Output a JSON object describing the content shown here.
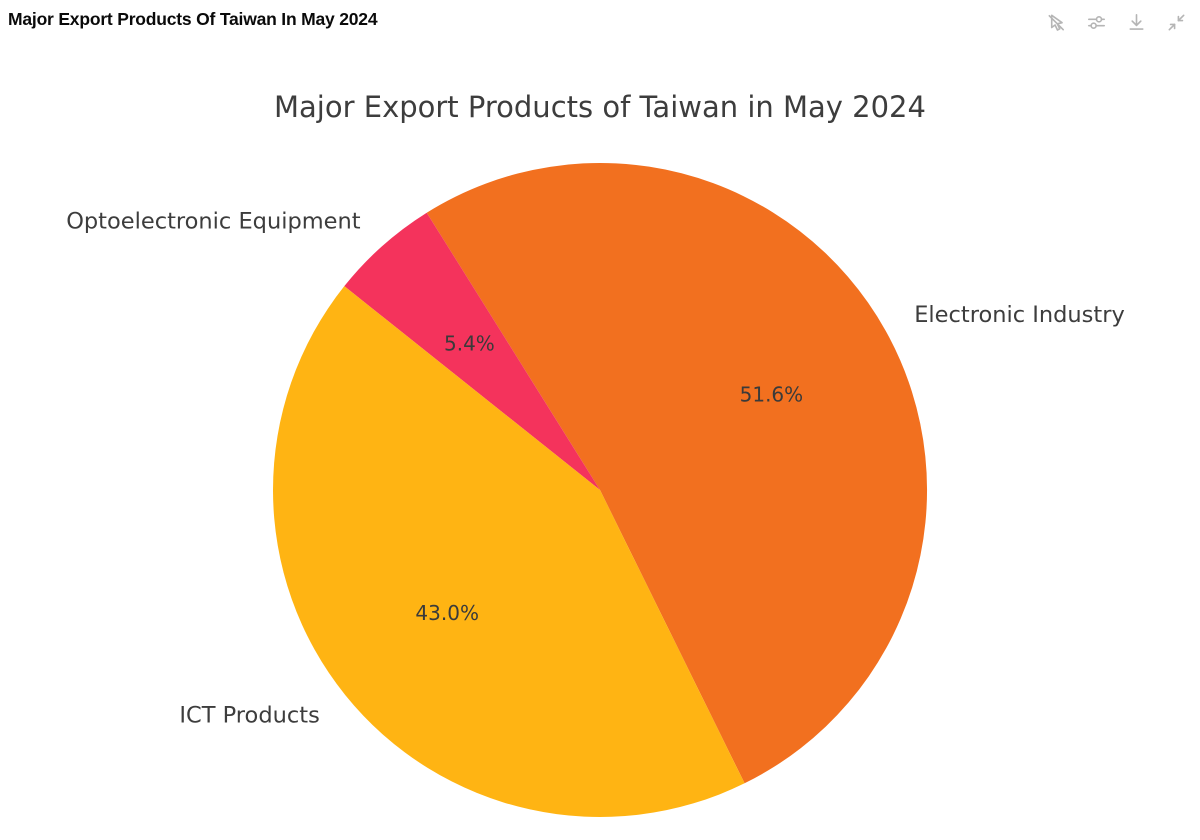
{
  "window": {
    "title": "Major Export Products Of Taiwan In May 2024"
  },
  "toolbar": {
    "icon_color": "#b5b5b5",
    "icons": [
      {
        "name": "pointer-off-icon"
      },
      {
        "name": "sliders-icon"
      },
      {
        "name": "download-icon"
      },
      {
        "name": "collapse-icon"
      }
    ]
  },
  "chart_data": {
    "type": "pie",
    "title": "Major Export Products of Taiwan in May 2024",
    "series": [
      {
        "name": "Electronic Industry",
        "value": 51.6,
        "pct_label": "51.6%",
        "color": "#F2701F"
      },
      {
        "name": "Optoelectronic Equipment",
        "value": 5.4,
        "pct_label": "5.4%",
        "color": "#F4335C"
      },
      {
        "name": "ICT Products",
        "value": 43.0,
        "pct_label": "43.0%",
        "color": "#FFB413"
      }
    ],
    "start_angle_deg": 296.24,
    "direction": "counterclockwise",
    "legend_position": "none",
    "label_distance": 1.1,
    "pct_distance": 0.6,
    "title_color": "#3d3d3d",
    "label_color": "#3d3d3d",
    "pct_color": "#3a3a3a",
    "background": "#ffffff"
  }
}
